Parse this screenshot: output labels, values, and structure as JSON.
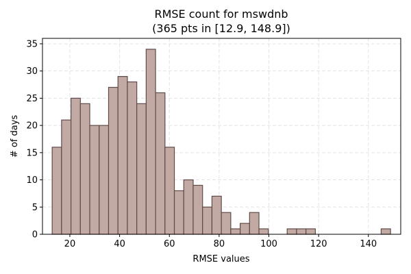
{
  "chart_data": {
    "type": "bar",
    "title_line1": "RMSE count for mswdnb",
    "title_line2": "(365 pts in [12.9, 148.9])",
    "xlabel": "RMSE values",
    "ylabel": "# of days",
    "xlim": [
      9,
      153
    ],
    "ylim": [
      0,
      36
    ],
    "xticks": [
      20,
      40,
      60,
      80,
      100,
      120,
      140
    ],
    "yticks": [
      0,
      5,
      10,
      15,
      20,
      25,
      30,
      35
    ],
    "grid": true,
    "bar_color": "#c3a9a3",
    "edge_color": "#5e4b48",
    "bin_start": 12.9,
    "bin_width": 3.778,
    "counts": [
      16,
      21,
      25,
      24,
      20,
      20,
      27,
      29,
      28,
      24,
      34,
      26,
      16,
      8,
      10,
      9,
      5,
      7,
      4,
      1,
      2,
      4,
      1,
      0,
      0,
      1,
      1,
      1,
      0,
      0,
      0,
      0,
      0,
      0,
      0,
      1
    ]
  }
}
